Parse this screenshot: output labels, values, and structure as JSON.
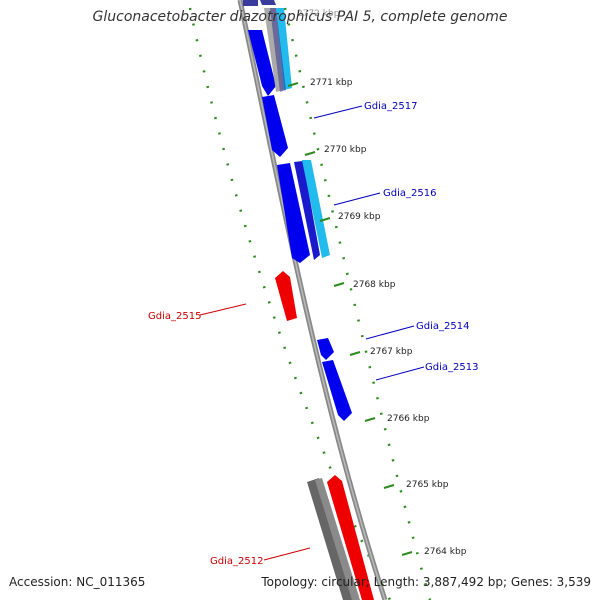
{
  "title": "Gluconacetobacter diazotrophicus PAI 5, complete genome",
  "accession": "Accession: NC_011365",
  "topology": "Topology: circular; Length: 3,887,492 bp; Genes: 3,539",
  "colors": {
    "forward_cds": "#0000ee",
    "forward_cds_dark": "#1a1acc",
    "forward_rna": "#22bbee",
    "reverse_gene": "#ee0000",
    "pseudogene": "#666666",
    "backbone": "#888888",
    "tick": "#2e8b1e",
    "label_blue": "#0000bb",
    "label_red": "#cc0000"
  },
  "ticks": [
    "2771 kbp",
    "2770 kbp",
    "2769 kbp",
    "2768 kbp",
    "2767 kbp",
    "2766 kbp",
    "2765 kbp",
    "2764 kbp"
  ],
  "faded_top_tick": "2772 kbp",
  "gene_labels": [
    {
      "name": "Gdia_2517",
      "strand": "forward"
    },
    {
      "name": "Gdia_2516",
      "strand": "forward"
    },
    {
      "name": "Gdia_2515",
      "strand": "reverse"
    },
    {
      "name": "Gdia_2514",
      "strand": "forward"
    },
    {
      "name": "Gdia_2513",
      "strand": "forward"
    },
    {
      "name": "Gdia_2512",
      "strand": "reverse"
    }
  ]
}
